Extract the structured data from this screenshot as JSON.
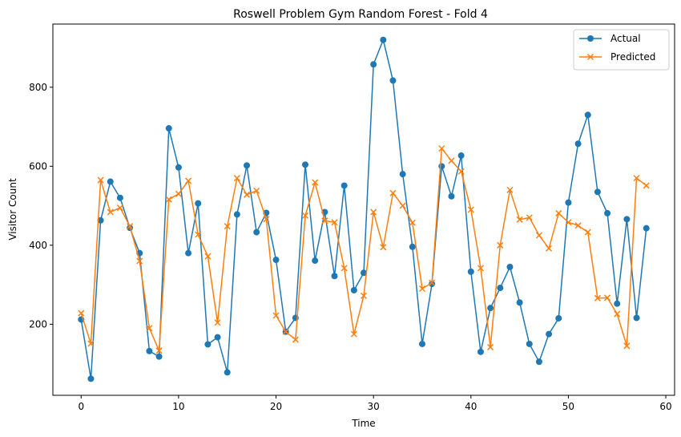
{
  "chart_data": {
    "type": "line",
    "title": "Roswell Problem Gym Random Forest - Fold 4",
    "xlabel": "Time",
    "ylabel": "Visitor Count",
    "xlim": [
      -2.9,
      60.9
    ],
    "ylim": [
      20,
      960
    ],
    "xticks": [
      0,
      10,
      20,
      30,
      40,
      50,
      60
    ],
    "yticks": [
      200,
      400,
      600,
      800
    ],
    "grid": false,
    "legend_position": "top-right",
    "x": [
      0,
      1,
      2,
      3,
      4,
      5,
      6,
      7,
      8,
      9,
      10,
      11,
      12,
      13,
      14,
      15,
      16,
      17,
      18,
      19,
      20,
      21,
      22,
      23,
      24,
      25,
      26,
      27,
      28,
      29,
      30,
      31,
      32,
      33,
      34,
      35,
      36,
      37,
      38,
      39,
      40,
      41,
      42,
      43,
      44,
      45,
      46,
      47,
      48,
      49,
      50,
      51,
      52,
      53,
      54,
      55,
      56,
      57,
      58
    ],
    "series": [
      {
        "name": "Actual",
        "color": "#1f77b4",
        "marker": "circle",
        "values": [
          212,
          62,
          463,
          561,
          520,
          444,
          380,
          132,
          118,
          696,
          597,
          380,
          506,
          149,
          167,
          78,
          478,
          602,
          433,
          482,
          363,
          181,
          216,
          604,
          361,
          484,
          322,
          551,
          286,
          330,
          858,
          920,
          817,
          580,
          396,
          150,
          302,
          600,
          524,
          627,
          333,
          130,
          241,
          292,
          345,
          255,
          150,
          105,
          175,
          215,
          508,
          657,
          730,
          535,
          481,
          252,
          466,
          216,
          443
        ]
      },
      {
        "name": "Predicted",
        "color": "#ff7f0e",
        "marker": "x",
        "values": [
          228,
          151,
          565,
          484,
          495,
          448,
          360,
          190,
          133,
          516,
          530,
          563,
          427,
          372,
          204,
          448,
          570,
          528,
          538,
          466,
          222,
          181,
          161,
          475,
          559,
          462,
          458,
          342,
          175,
          272,
          484,
          395,
          532,
          500,
          457,
          290,
          305,
          645,
          614,
          587,
          490,
          342,
          142,
          400,
          540,
          465,
          470,
          425,
          392,
          481,
          458,
          450,
          433,
          266,
          267,
          226,
          145,
          570,
          551
        ]
      }
    ]
  }
}
